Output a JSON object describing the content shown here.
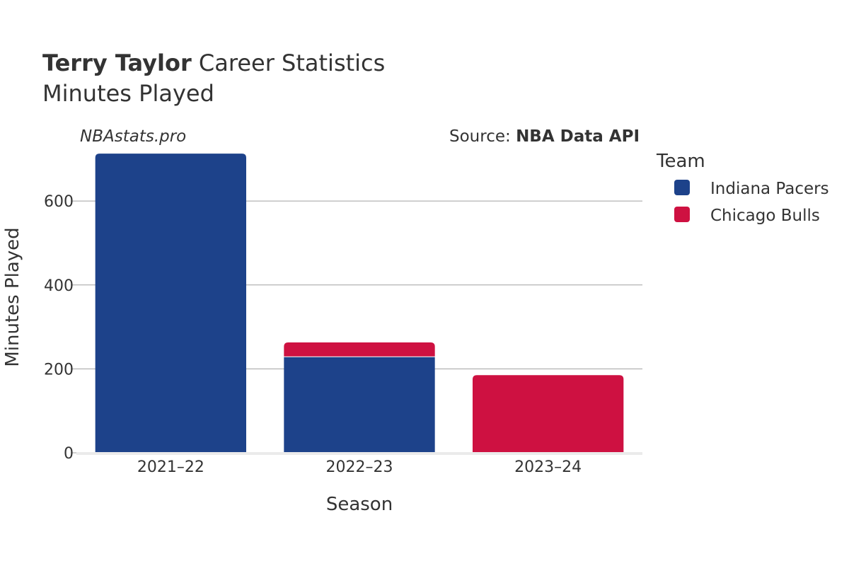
{
  "chart_data": {
    "type": "bar",
    "stacked": true,
    "title_bold": "Terry Taylor",
    "title_rest": " Career Statistics",
    "subtitle": "Minutes Played",
    "watermark": "NBAstats.pro",
    "source_label": "Source: ",
    "source_name": "NBA Data API",
    "xlabel": "Season",
    "ylabel": "Minutes Played",
    "ylim": [
      0,
      725
    ],
    "yticks": [
      0,
      200,
      400,
      600
    ],
    "grid": true,
    "categories": [
      "2021–22",
      "2022–23",
      "2023–24"
    ],
    "legend_title": "Team",
    "legend_position": "right",
    "series": [
      {
        "name": "Indiana Pacers",
        "color": "#1d428a",
        "values": [
          713,
          228,
          0
        ]
      },
      {
        "name": "Chicago Bulls",
        "color": "#ce1141",
        "values": [
          0,
          35,
          185
        ]
      }
    ]
  }
}
